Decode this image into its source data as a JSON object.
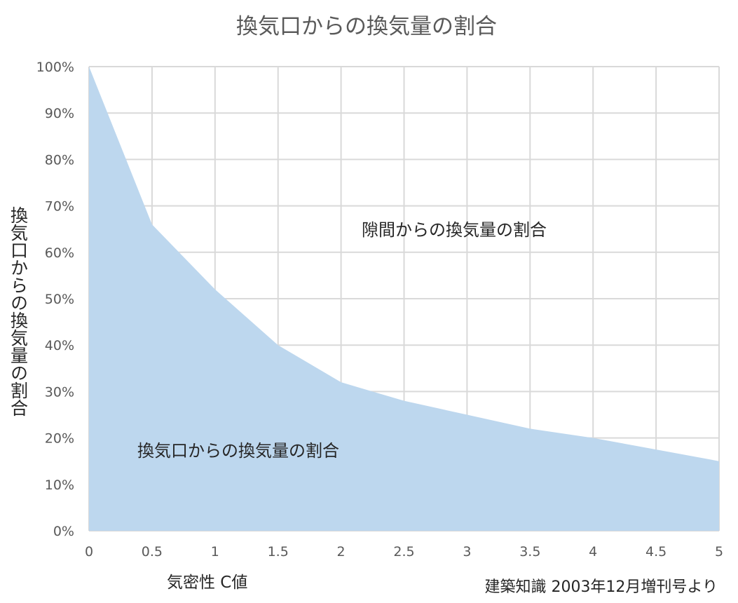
{
  "chart_data": {
    "type": "area",
    "title": "換気口からの換気量の割合",
    "xlabel": "気密性 C値",
    "ylabel": "換気口からの換気量の割合",
    "source_note": "建築知識 2003年12月増刊号より",
    "x": [
      0,
      0.5,
      1,
      1.5,
      2,
      2.5,
      3,
      3.5,
      4,
      4.5,
      5
    ],
    "x_tick_labels": [
      "0",
      "0.5",
      "1",
      "1.5",
      "2",
      "2.5",
      "3",
      "3.5",
      "4",
      "4.5",
      "5"
    ],
    "series": [
      {
        "values": [
          100,
          66,
          52,
          40,
          32,
          28,
          25,
          22,
          20,
          17.5,
          15
        ]
      }
    ],
    "y_tick_labels": [
      "0%",
      "10%",
      "20%",
      "30%",
      "40%",
      "50%",
      "60%",
      "70%",
      "80%",
      "90%",
      "100%"
    ],
    "xlim": [
      0,
      5
    ],
    "ylim": [
      0,
      100
    ],
    "grid": true,
    "annotations": [
      {
        "text": "隙間からの換気量の割合"
      },
      {
        "text": "換気口からの換気量の割合"
      }
    ],
    "colors": {
      "area": "#bdd7ee",
      "grid": "#d9d9d9",
      "tick_text": "#595959",
      "label_text": "#262626"
    }
  }
}
